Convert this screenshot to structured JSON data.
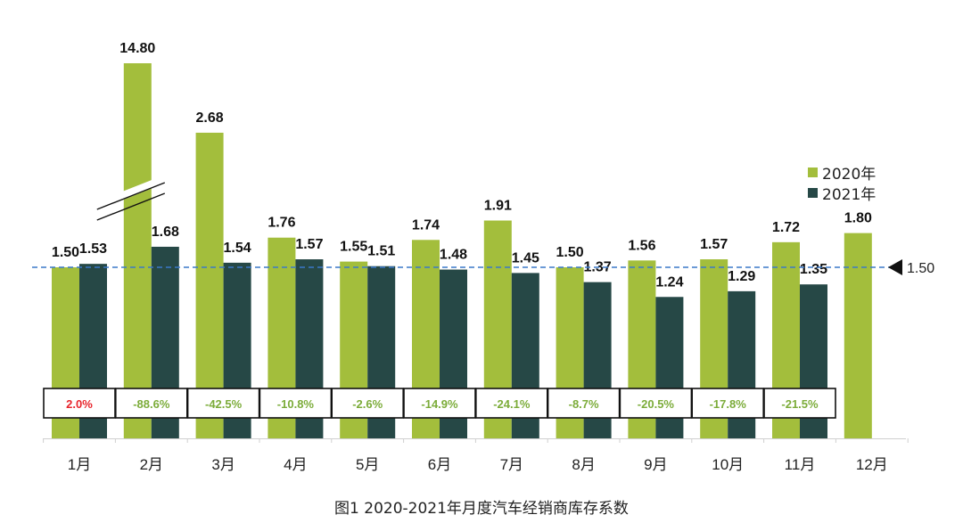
{
  "chart_data": {
    "type": "bar",
    "title": "图1  2020-2021年月度汽车经销商库存系数",
    "categories": [
      "1月",
      "2月",
      "3月",
      "4月",
      "5月",
      "6月",
      "7月",
      "8月",
      "9月",
      "10月",
      "11月",
      "12月"
    ],
    "series": [
      {
        "name": "2020年",
        "color": "#a3be3c",
        "values": [
          1.5,
          14.8,
          2.68,
          1.76,
          1.55,
          1.74,
          1.91,
          1.5,
          1.56,
          1.57,
          1.72,
          1.8
        ],
        "labels": [
          "1.50",
          "14.80",
          "2.68",
          "1.76",
          "1.55",
          "1.74",
          "1.91",
          "1.50",
          "1.56",
          "1.57",
          "1.72",
          "1.80"
        ]
      },
      {
        "name": "2021年",
        "color": "#264846",
        "values": [
          1.53,
          1.68,
          1.54,
          1.57,
          1.51,
          1.48,
          1.45,
          1.37,
          1.24,
          1.29,
          1.35,
          null
        ],
        "labels": [
          "1.53",
          "1.68",
          "1.54",
          "1.57",
          "1.51",
          "1.48",
          "1.45",
          "1.37",
          "1.24",
          "1.29",
          "1.35",
          ""
        ]
      }
    ],
    "yoy_change": [
      "2.0%",
      "-88.6%",
      "-42.5%",
      "-10.8%",
      "-2.6%",
      "-14.9%",
      "-24.1%",
      "-8.7%",
      "-20.5%",
      "-17.8%",
      "-21.5%"
    ],
    "yoy_colors": {
      "positive": "#e8262d",
      "negative": "#7cac3a"
    },
    "reference_line": {
      "value": 1.5,
      "label": "1.50",
      "color": "#3a78c8"
    },
    "axis_break": {
      "series": "2020年",
      "category": "2月"
    },
    "xlabel": "",
    "ylabel": "",
    "grid": false,
    "legend_position": "right"
  }
}
